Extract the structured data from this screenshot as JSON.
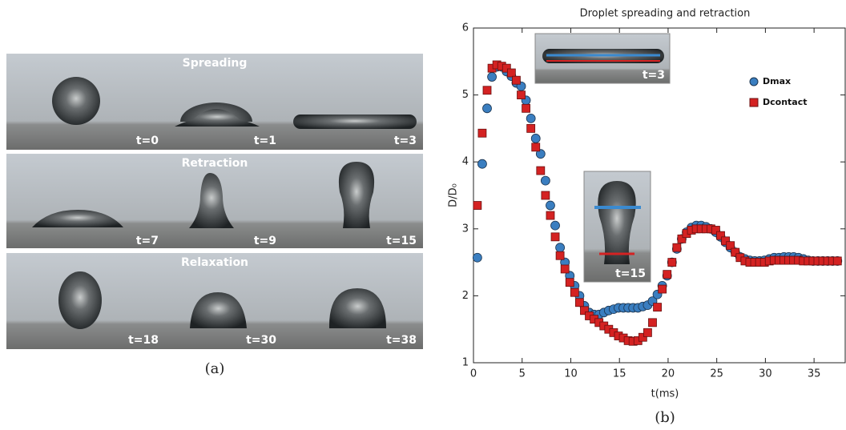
{
  "panels": [
    {
      "title": "Spreading",
      "labels": [
        "t=0",
        "t=1",
        "t=3"
      ]
    },
    {
      "title": "Retraction",
      "labels": [
        "t=7",
        "t=9",
        "t=15"
      ]
    },
    {
      "title": "Relaxation",
      "labels": [
        "t=18",
        "t=30",
        "t=38"
      ]
    }
  ],
  "caption_a": "(a)",
  "caption_b": "(b)",
  "chart_data": {
    "type": "scatter",
    "title": "Droplet spreading and retraction",
    "x_label": "t(ms)",
    "y_label": "D/D₀",
    "inset_labels": [
      "t=3",
      "t=15"
    ],
    "x": [
      0.4,
      0.9,
      1.4,
      1.9,
      2.4,
      2.9,
      3.4,
      3.9,
      4.4,
      4.9,
      5.4,
      5.9,
      6.4,
      6.9,
      7.4,
      7.9,
      8.4,
      8.9,
      9.4,
      9.9,
      10.4,
      10.9,
      11.4,
      11.9,
      12.4,
      12.9,
      13.4,
      13.9,
      14.4,
      14.9,
      15.4,
      15.9,
      16.4,
      16.9,
      17.4,
      17.9,
      18.4,
      18.9,
      19.4,
      19.9,
      20.4,
      20.9,
      21.4,
      21.9,
      22.4,
      22.9,
      23.4,
      23.9,
      24.4,
      24.9,
      25.4,
      25.9,
      26.4,
      26.9,
      27.4,
      27.9,
      28.4,
      28.9,
      29.4,
      29.9,
      30.4,
      30.9,
      31.4,
      31.9,
      32.4,
      32.9,
      33.4,
      33.9,
      34.4,
      34.9,
      35.4,
      35.9,
      36.4,
      36.9,
      37.4
    ],
    "series": [
      {
        "name": "Dmax",
        "color": "#3a7ec0",
        "marker": "circle",
        "values": [
          2.57,
          3.97,
          4.8,
          5.27,
          5.42,
          5.42,
          5.35,
          5.28,
          5.18,
          5.13,
          4.92,
          4.65,
          4.35,
          4.12,
          3.72,
          3.35,
          3.05,
          2.72,
          2.5,
          2.3,
          2.15,
          2.0,
          1.85,
          1.75,
          1.72,
          1.72,
          1.75,
          1.78,
          1.8,
          1.82,
          1.82,
          1.82,
          1.82,
          1.82,
          1.84,
          1.86,
          1.92,
          2.02,
          2.15,
          2.3,
          2.5,
          2.7,
          2.85,
          2.95,
          3.02,
          3.05,
          3.05,
          3.03,
          3.0,
          2.95,
          2.88,
          2.8,
          2.72,
          2.65,
          2.58,
          2.55,
          2.53,
          2.52,
          2.52,
          2.53,
          2.55,
          2.57,
          2.57,
          2.58,
          2.58,
          2.58,
          2.57,
          2.55,
          2.53,
          2.52,
          2.52,
          2.52,
          2.52,
          2.52,
          2.52
        ]
      },
      {
        "name": "Dcontact",
        "color": "#d42222",
        "marker": "square",
        "values": [
          3.35,
          4.43,
          5.07,
          5.4,
          5.45,
          5.43,
          5.4,
          5.33,
          5.22,
          5.0,
          4.8,
          4.5,
          4.22,
          3.87,
          3.5,
          3.2,
          2.88,
          2.6,
          2.4,
          2.2,
          2.05,
          1.9,
          1.78,
          1.7,
          1.65,
          1.6,
          1.55,
          1.5,
          1.45,
          1.4,
          1.37,
          1.33,
          1.32,
          1.33,
          1.38,
          1.45,
          1.6,
          1.83,
          2.1,
          2.32,
          2.5,
          2.72,
          2.85,
          2.93,
          2.98,
          3.0,
          3.0,
          3.0,
          3.0,
          2.98,
          2.9,
          2.82,
          2.75,
          2.65,
          2.57,
          2.52,
          2.5,
          2.5,
          2.5,
          2.5,
          2.52,
          2.53,
          2.53,
          2.53,
          2.53,
          2.53,
          2.53,
          2.52,
          2.52,
          2.52,
          2.52,
          2.52,
          2.52,
          2.52,
          2.52
        ]
      }
    ],
    "xlim": [
      0,
      38.2
    ],
    "ylim": [
      1,
      6
    ],
    "xticks": [
      0,
      5,
      10,
      15,
      20,
      25,
      30,
      35
    ],
    "yticks": [
      1,
      2,
      3,
      4,
      5,
      6
    ],
    "legend": "upper-right"
  }
}
